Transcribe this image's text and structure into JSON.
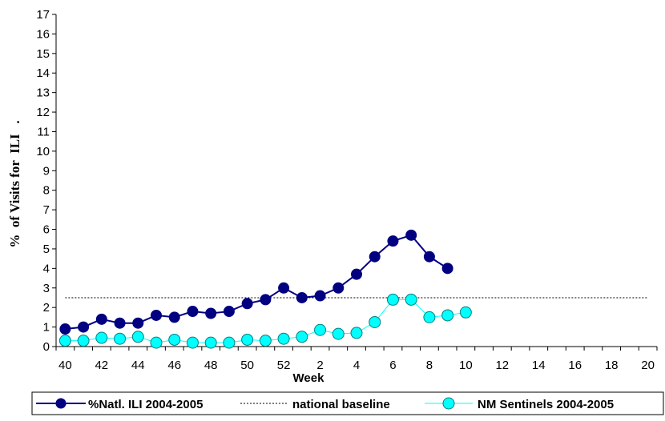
{
  "chart_data": {
    "type": "line",
    "xlabel": "Week",
    "ylabel": "%  of Visits for  ILI   .",
    "ylim": [
      0,
      17
    ],
    "yticks": [
      0,
      1,
      2,
      3,
      4,
      5,
      6,
      7,
      8,
      9,
      10,
      11,
      12,
      13,
      14,
      15,
      16,
      17
    ],
    "weeks": [
      "40",
      "41",
      "42",
      "43",
      "44",
      "45",
      "46",
      "47",
      "48",
      "49",
      "50",
      "51",
      "52",
      "1",
      "2",
      "3",
      "4",
      "5",
      "6",
      "7",
      "8",
      "9",
      "10",
      "11",
      "12",
      "13",
      "14",
      "15",
      "16",
      "17",
      "18",
      "19",
      "20"
    ],
    "xtick_labels": [
      "40",
      "42",
      "44",
      "46",
      "48",
      "50",
      "52",
      "2",
      "4",
      "6",
      "8",
      "10",
      "12",
      "14",
      "16",
      "18",
      "20"
    ],
    "grid": false,
    "legend_position": "bottom",
    "colors": {
      "natl": "#000080",
      "baseline": "#000000",
      "nm": "#00ffff",
      "nm_stroke": "#008080"
    },
    "series": [
      {
        "name": "%Natl. ILI 2004-2005",
        "week_index_start": 0,
        "values": [
          0.9,
          1.0,
          1.4,
          1.2,
          1.2,
          1.6,
          1.5,
          1.8,
          1.7,
          1.8,
          2.2,
          2.4,
          3.0,
          2.5,
          2.6,
          3.0,
          3.7,
          4.6,
          5.4,
          5.7,
          4.6,
          4.0
        ]
      },
      {
        "name": "national baseline",
        "value": 2.5,
        "x_from_week_index": 0,
        "x_to_week_index": 32
      },
      {
        "name": "NM Sentinels 2004-2005",
        "week_index_start": 0,
        "values": [
          0.3,
          0.3,
          0.45,
          0.4,
          0.5,
          0.2,
          0.35,
          0.2,
          0.2,
          0.2,
          0.35,
          0.3,
          0.4,
          0.5,
          0.85,
          0.65,
          0.7,
          1.25,
          2.4,
          2.4,
          1.5,
          1.6,
          1.75
        ]
      }
    ]
  }
}
